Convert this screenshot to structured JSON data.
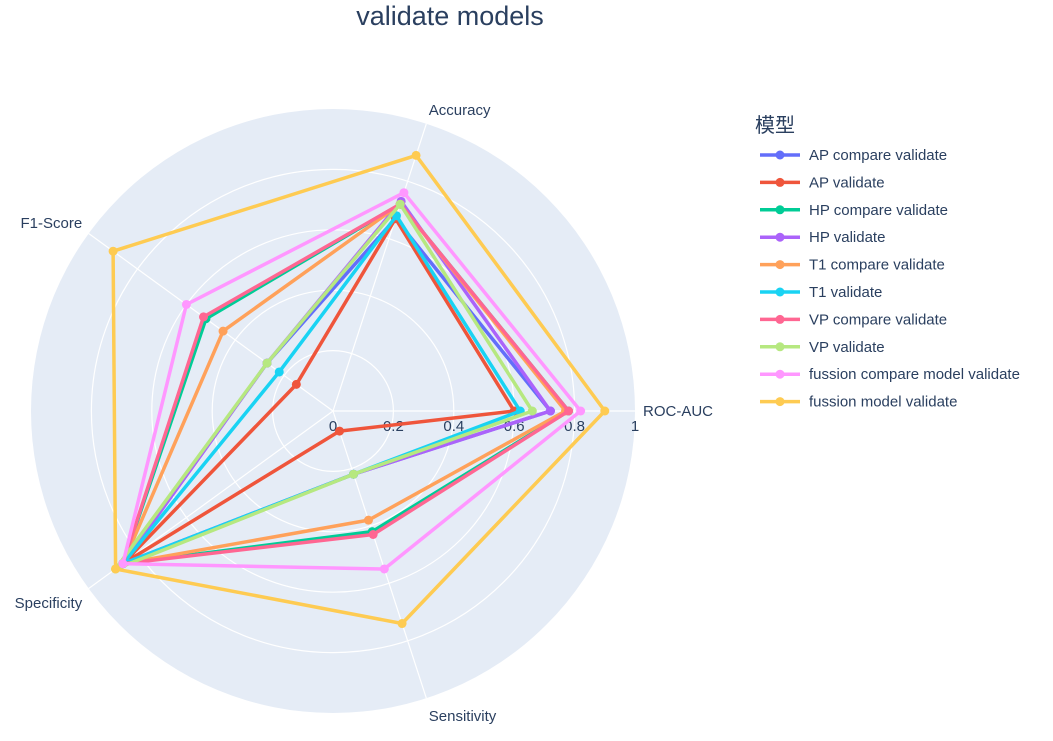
{
  "chart_data": {
    "type": "radar",
    "title": "validate models",
    "axes": [
      "ROC-AUC",
      "Accuracy",
      "F1-Score",
      "Specificity",
      "Sensitivity"
    ],
    "radial_range": [
      0,
      1
    ],
    "radial_ticks": [
      "0",
      "0.2",
      "0.4",
      "0.6",
      "0.8",
      "1"
    ],
    "grid": true,
    "legend": {
      "title": "模型",
      "placement": "right"
    },
    "series": [
      {
        "name": "AP compare validate",
        "color": "#636efa",
        "values": [
          0.72,
          0.67,
          0.27,
          0.86,
          0.22
        ]
      },
      {
        "name": "AP validate",
        "color": "#ef553b",
        "values": [
          0.6,
          0.67,
          0.15,
          0.86,
          0.07
        ]
      },
      {
        "name": "HP compare validate",
        "color": "#00cc96",
        "values": [
          0.78,
          0.72,
          0.52,
          0.86,
          0.42
        ]
      },
      {
        "name": "HP validate",
        "color": "#ab63fa",
        "values": [
          0.72,
          0.73,
          0.27,
          0.86,
          0.22
        ]
      },
      {
        "name": "T1 compare validate",
        "color": "#ffa15a",
        "values": [
          0.77,
          0.72,
          0.45,
          0.86,
          0.38
        ]
      },
      {
        "name": "T1 validate",
        "color": "#19d3f3",
        "values": [
          0.62,
          0.68,
          0.22,
          0.86,
          0.22
        ]
      },
      {
        "name": "VP compare validate",
        "color": "#ff6692",
        "values": [
          0.78,
          0.72,
          0.53,
          0.86,
          0.43
        ]
      },
      {
        "name": "VP validate",
        "color": "#b6e880",
        "values": [
          0.66,
          0.72,
          0.27,
          0.89,
          0.22
        ]
      },
      {
        "name": "fussion compare model validate",
        "color": "#ff97ff",
        "values": [
          0.82,
          0.76,
          0.6,
          0.86,
          0.55
        ]
      },
      {
        "name": "fussion model validate",
        "color": "#fecb52",
        "values": [
          0.9,
          0.89,
          0.9,
          0.89,
          0.74
        ]
      }
    ]
  }
}
